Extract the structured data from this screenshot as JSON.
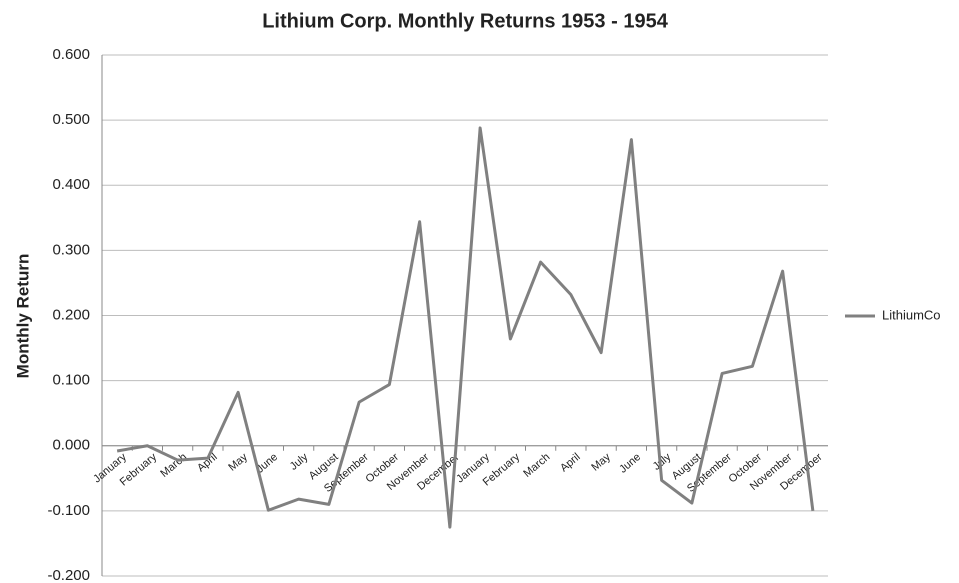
{
  "chart_data": {
    "type": "line",
    "title": "Lithium Corp. Monthly Returns 1953 - 1954",
    "y_label": "Monthly Return",
    "categories": [
      "January",
      "February",
      "March",
      "April",
      "May",
      "June",
      "July",
      "August",
      "September",
      "October",
      "November",
      "December",
      "January",
      "February",
      "March",
      "April",
      "May",
      "June",
      "July",
      "August",
      "September",
      "October",
      "November",
      "December"
    ],
    "series": [
      {
        "name": "LithiumCo",
        "color": "#808080",
        "values": [
          -0.008,
          0.0,
          -0.022,
          -0.019,
          0.082,
          -0.099,
          -0.082,
          -0.09,
          0.067,
          0.094,
          0.344,
          -0.125,
          0.488,
          0.164,
          0.282,
          0.232,
          0.143,
          0.47,
          -0.053,
          -0.088,
          0.111,
          0.122,
          0.268,
          -0.1
        ]
      }
    ],
    "ylim": [
      -0.2,
      0.6
    ],
    "yticks": [
      {
        "value": -0.2,
        "label": "-0.200"
      },
      {
        "value": -0.1,
        "label": "-0.100"
      },
      {
        "value": 0,
        "label": "0.000"
      },
      {
        "value": 0.1,
        "label": "0.100"
      },
      {
        "value": 0.2,
        "label": "0.200"
      },
      {
        "value": 0.3,
        "label": "0.300"
      },
      {
        "value": 0.4,
        "label": "0.400"
      },
      {
        "value": 0.5,
        "label": "0.500"
      },
      {
        "value": 0.6,
        "label": "0.600"
      }
    ],
    "grid": true,
    "legend": "right"
  }
}
